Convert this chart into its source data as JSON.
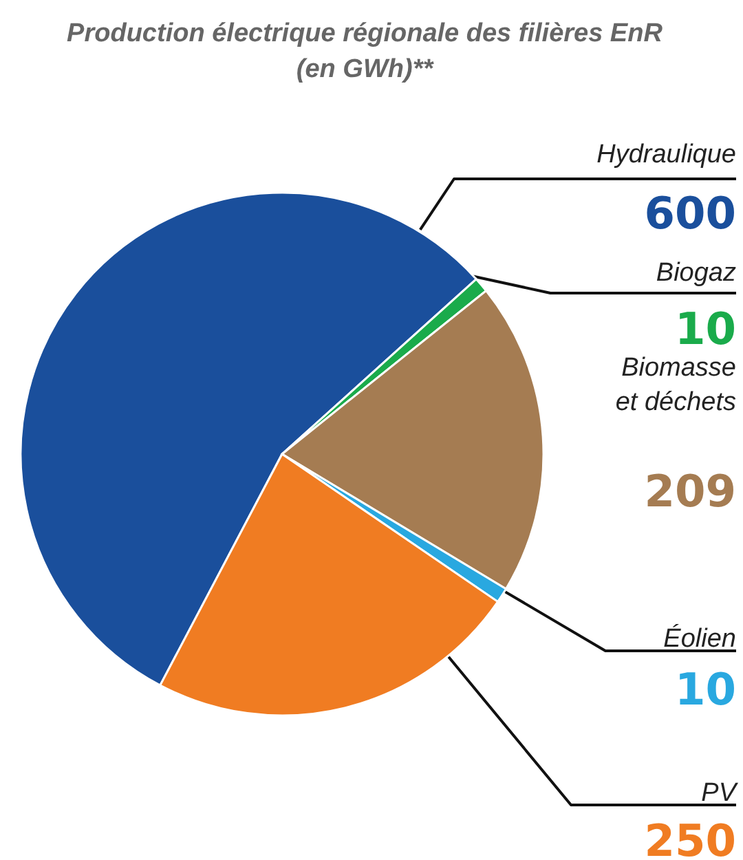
{
  "chart_data": {
    "type": "pie",
    "title": "Production électrique régionale des filières EnR\n(en GWh)**",
    "categories": [
      "Hydraulique",
      "Biogaz",
      "Biomasse et déchets",
      "Éolien",
      "PV"
    ],
    "values": [
      600,
      10,
      209,
      10,
      250
    ],
    "colors": [
      "#1a4f9c",
      "#1aab4b",
      "#a57c52",
      "#29a8e0",
      "#f07c22"
    ],
    "data_labels": true,
    "legend": false
  }
}
